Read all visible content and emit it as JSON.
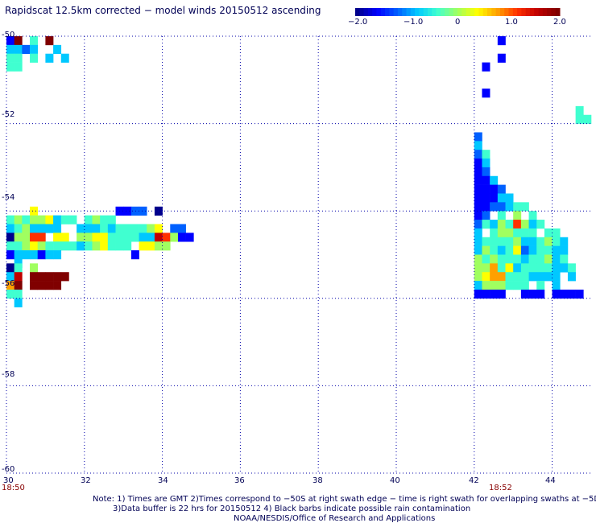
{
  "title": "Rapidscat 12.5km corrected − model winds 20150512 ascending",
  "colorbar": {
    "ticks": [
      "−2.0",
      "−1.0",
      "0",
      "1.0",
      "2.0"
    ],
    "colors": [
      "#00008c",
      "#0000ff",
      "#0060ff",
      "#00c8ff",
      "#40ffd0",
      "#a0ff60",
      "#ffff00",
      "#ffa000",
      "#ff3000",
      "#c00000",
      "#800000"
    ]
  },
  "notes": [
    "Note: 1) Times are GMT 2)Times correspond to −50S at right swath edge − time is right swath for overlapping swaths at −5DS",
    "3)Data buffer is 22 hrs for 20150512 4) Black barbs indicate possible rain contamination",
    "NOAA/NESDIS/Office of Research and Applications"
  ],
  "times": {
    "left": "18:50",
    "right": "18:52"
  },
  "chart_data": {
    "type": "heatmap",
    "title": "Rapidscat 12.5km corrected − model winds 20150512 ascending",
    "x_ticks": [
      "30",
      "32",
      "34",
      "36",
      "38",
      "40",
      "42",
      "44"
    ],
    "y_ticks": [
      "-50",
      "-52",
      "-54",
      "-56",
      "-58",
      "-60"
    ],
    "xlim": [
      30,
      45
    ],
    "ylim": [
      -60,
      -50
    ],
    "colorbar_range": [
      -2.0,
      2.0
    ],
    "grid": true,
    "cell_size_deg": [
      0.2,
      0.2
    ],
    "swaths": [
      {
        "lon_start": 30.0,
        "lat_top": -50.0,
        "rows": [
          "1d.4.e.....",
          "3323..3...",
          "44.4.3.3",
          "44"
        ]
      },
      {
        "lon_start": 30.0,
        "lat_top": -53.9,
        "rows": [
          "...6..........1122.0",
          "454556344.4544.",
          "3453333..33343444456.22.",
          "05588.66.556644443398511.",
          "4456544443456444.6655...",
          "1333133.........1..",
          ".3"
        ]
      },
      {
        "lon_start": 30.0,
        "lat_top": -55.2,
        "rows": [
          "04.5",
          "39.aaaaa",
          "7a.aaaa",
          "44.",
          ".3"
        ]
      },
      {
        "lon_start": 42.2,
        "lat_top": -50.0,
        "rows": [
          "..1",
          ".......",
          "..1",
          "1",
          "..",
          "",
          "1"
        ]
      },
      {
        "lon_start": 42.0,
        "lat_top": -52.2,
        "rows": [
          "2",
          "3",
          "24",
          "13",
          "12.",
          "113",
          "1112",
          "11133.",
          "1122344",
          "12.4.5.4",
          "243548534",
          "3.455444.44",
          "344445334543",
          "354346234433",
          "545444344534",
          "5574634444334",
          "56774443333.3",
          "3555444.4.3",
          "1111..111.1111"
        ]
      },
      {
        "lon_start": 44.6,
        "lat_top": -51.6,
        "rows": [
          "4",
          "44"
        ]
      }
    ]
  }
}
